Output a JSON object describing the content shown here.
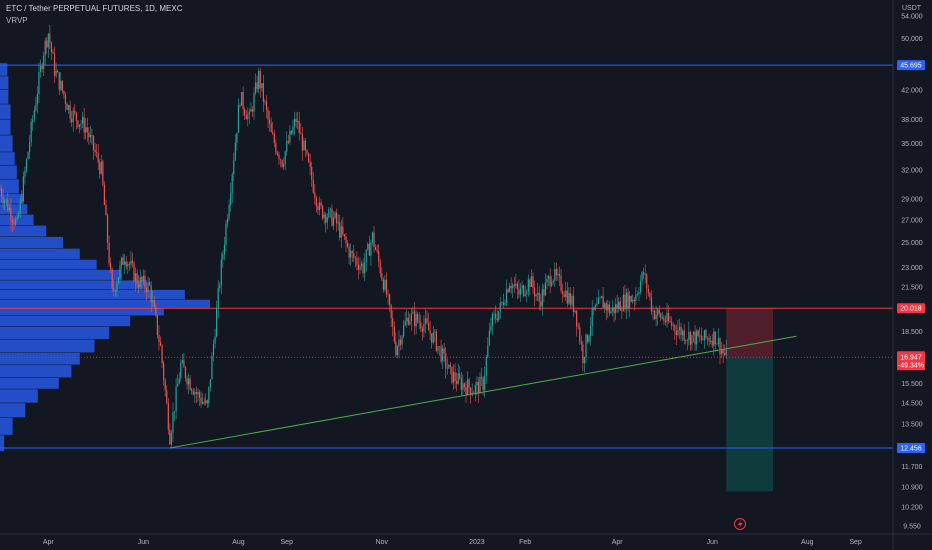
{
  "header": {
    "title": "ETC / Tether PERPETUAL FUTURES, 1D, MEXC",
    "indicator": "VRVP",
    "currency": "USDT"
  },
  "colors": {
    "background": "#131722",
    "up": "#26a69a",
    "down": "#ef5350",
    "support": "#2962ff",
    "resistance": "#f23645",
    "trendline": "#4caf50",
    "volume_profile": "#2962ff"
  },
  "chart_data": {
    "type": "candlestick",
    "title": "ETC / Tether PERPETUAL FUTURES, 1D, MEXC",
    "y_axis_label": "USDT",
    "y_scale": "log",
    "ylim": [
      9.3,
      57.0
    ],
    "xlim": [
      "2022-03-01",
      "2023-09-25"
    ],
    "y_ticks": [
      "54.000",
      "50.000",
      "45.695",
      "42.000",
      "38.000",
      "35.000",
      "32.000",
      "29.000",
      "27.000",
      "25.000",
      "23.000",
      "21.500",
      "20.018",
      "18.500",
      "16.947",
      "15.500",
      "14.500",
      "13.500",
      "12.456",
      "11.700",
      "10.900",
      "10.200",
      "9.550"
    ],
    "x_ticks": [
      {
        "date": "2022-04-01",
        "label": "Apr"
      },
      {
        "date": "2022-06-01",
        "label": "Jun"
      },
      {
        "date": "2022-08-01",
        "label": "Aug"
      },
      {
        "date": "2022-09-01",
        "label": "Sep"
      },
      {
        "date": "2022-11-01",
        "label": "Nov"
      },
      {
        "date": "2023-01-01",
        "label": "2023"
      },
      {
        "date": "2023-02-01",
        "label": "Feb"
      },
      {
        "date": "2023-04-01",
        "label": "Apr"
      },
      {
        "date": "2023-06-01",
        "label": "Jun"
      },
      {
        "date": "2023-08-01",
        "label": "Aug"
      },
      {
        "date": "2023-09-01",
        "label": "Sep"
      }
    ],
    "price_path": [
      [
        "2022-03-01",
        30.0
      ],
      [
        "2022-03-12",
        26.5
      ],
      [
        "2022-03-22",
        38.0
      ],
      [
        "2022-03-29",
        48.0
      ],
      [
        "2022-04-01",
        51.0
      ],
      [
        "2022-04-05",
        45.0
      ],
      [
        "2022-04-15",
        39.0
      ],
      [
        "2022-04-25",
        37.0
      ],
      [
        "2022-05-05",
        32.0
      ],
      [
        "2022-05-12",
        21.0
      ],
      [
        "2022-05-20",
        24.0
      ],
      [
        "2022-05-28",
        22.0
      ],
      [
        "2022-06-05",
        21.5
      ],
      [
        "2022-06-12",
        17.5
      ],
      [
        "2022-06-18",
        13.0
      ],
      [
        "2022-06-25",
        16.5
      ],
      [
        "2022-07-05",
        15.0
      ],
      [
        "2022-07-12",
        14.3
      ],
      [
        "2022-07-20",
        22.0
      ],
      [
        "2022-07-28",
        32.0
      ],
      [
        "2022-08-02",
        41.0
      ],
      [
        "2022-08-08",
        38.0
      ],
      [
        "2022-08-14",
        44.0
      ],
      [
        "2022-08-22",
        36.0
      ],
      [
        "2022-08-29",
        33.0
      ],
      [
        "2022-09-07",
        38.0
      ],
      [
        "2022-09-14",
        33.0
      ],
      [
        "2022-09-22",
        28.0
      ],
      [
        "2022-10-02",
        27.0
      ],
      [
        "2022-10-12",
        24.0
      ],
      [
        "2022-10-20",
        23.0
      ],
      [
        "2022-10-26",
        25.5
      ],
      [
        "2022-11-04",
        21.0
      ],
      [
        "2022-11-10",
        17.5
      ],
      [
        "2022-11-18",
        19.5
      ],
      [
        "2022-11-28",
        19.0
      ],
      [
        "2022-12-05",
        18.0
      ],
      [
        "2022-12-15",
        16.0
      ],
      [
        "2022-12-22",
        15.5
      ],
      [
        "2022-12-30",
        15.2
      ],
      [
        "2023-01-05",
        15.5
      ],
      [
        "2023-01-10",
        19.0
      ],
      [
        "2023-01-16",
        20.0
      ],
      [
        "2023-01-22",
        22.0
      ],
      [
        "2023-01-28",
        21.0
      ],
      [
        "2023-02-04",
        22.0
      ],
      [
        "2023-02-10",
        20.5
      ],
      [
        "2023-02-18",
        22.5
      ],
      [
        "2023-02-25",
        21.5
      ],
      [
        "2023-03-05",
        20.0
      ],
      [
        "2023-03-10",
        17.0
      ],
      [
        "2023-03-16",
        19.5
      ],
      [
        "2023-03-22",
        20.5
      ],
      [
        "2023-03-28",
        19.8
      ],
      [
        "2023-04-05",
        20.5
      ],
      [
        "2023-04-12",
        20.8
      ],
      [
        "2023-04-18",
        22.5
      ],
      [
        "2023-04-24",
        19.8
      ],
      [
        "2023-05-05",
        19.0
      ],
      [
        "2023-05-15",
        18.3
      ],
      [
        "2023-05-25",
        18.0
      ],
      [
        "2023-06-03",
        18.2
      ],
      [
        "2023-06-08",
        17.2
      ],
      [
        "2023-06-10",
        16.95
      ]
    ],
    "levels": [
      {
        "label": "45.695",
        "value": 45.695,
        "color": "#2962ff"
      },
      {
        "label": "20.018",
        "value": 20.018,
        "color": "#f23645"
      },
      {
        "label": "12.456",
        "value": 12.456,
        "color": "#2962ff"
      }
    ],
    "current_price": {
      "label": "16.947",
      "change": "-49.34%",
      "value": 16.947,
      "color": "#f23645"
    },
    "trendline": {
      "start": [
        "2022-06-18",
        12.456
      ],
      "end": [
        "2023-07-25",
        18.2
      ],
      "color": "#4caf50"
    },
    "position": {
      "start": "2023-06-10",
      "end": "2023-07-10",
      "entry": 16.947,
      "stop": 20.018,
      "target": 10.75
    },
    "volume_profile": {
      "note": "VRVP horizontal volume at price, relative 0-1",
      "bins": [
        [
          9.6,
          0.0
        ],
        [
          11.0,
          0.0
        ],
        [
          12.3,
          0.02
        ],
        [
          13.0,
          0.06
        ],
        [
          13.8,
          0.12
        ],
        [
          14.5,
          0.18
        ],
        [
          15.2,
          0.28
        ],
        [
          15.8,
          0.34
        ],
        [
          16.5,
          0.38
        ],
        [
          17.2,
          0.45
        ],
        [
          18.0,
          0.52
        ],
        [
          18.8,
          0.62
        ],
        [
          19.5,
          0.78
        ],
        [
          20.0,
          1.0
        ],
        [
          20.6,
          0.88
        ],
        [
          21.3,
          0.7
        ],
        [
          22.0,
          0.58
        ],
        [
          22.8,
          0.46
        ],
        [
          23.6,
          0.38
        ],
        [
          24.5,
          0.3
        ],
        [
          25.5,
          0.22
        ],
        [
          26.5,
          0.16
        ],
        [
          27.5,
          0.13
        ],
        [
          28.5,
          0.11
        ],
        [
          29.5,
          0.09
        ],
        [
          31.0,
          0.08
        ],
        [
          32.5,
          0.07
        ],
        [
          34.0,
          0.06
        ],
        [
          36.0,
          0.05
        ],
        [
          38.0,
          0.05
        ],
        [
          40.0,
          0.04
        ],
        [
          42.0,
          0.04
        ],
        [
          44.0,
          0.035
        ],
        [
          46.0,
          0.03
        ]
      ]
    }
  }
}
